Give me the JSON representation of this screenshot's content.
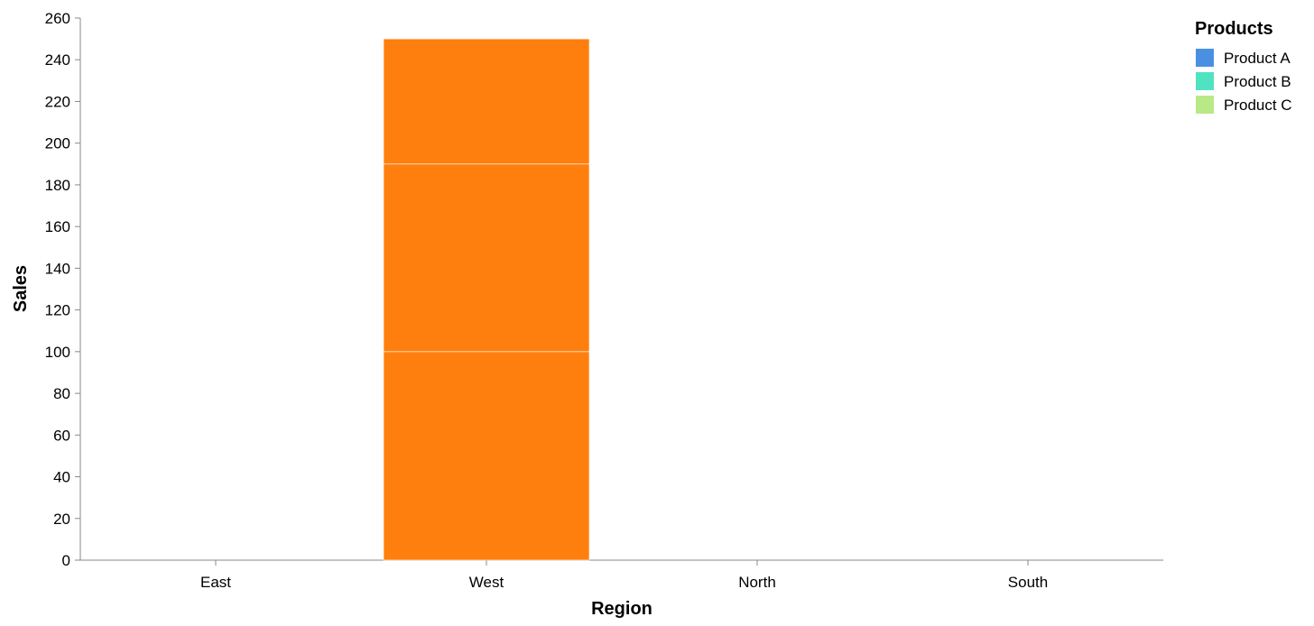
{
  "chart_data": {
    "type": "bar",
    "stacked": true,
    "categories": [
      "East",
      "West",
      "North",
      "South"
    ],
    "series": [
      {
        "name": "Product A",
        "color": "#4a90e2",
        "values": [
          0,
          100,
          0,
          0
        ]
      },
      {
        "name": "Product B",
        "color": "#50e3c2",
        "values": [
          0,
          90,
          0,
          0
        ]
      },
      {
        "name": "Product C",
        "color": "#b8e986",
        "values": [
          0,
          60,
          0,
          0
        ]
      }
    ],
    "rendered_bar_color": "#ff7f0e",
    "xlabel": "Region",
    "ylabel": "Sales",
    "ylim": [
      0,
      260
    ],
    "yticks": [
      0,
      20,
      40,
      60,
      80,
      100,
      120,
      140,
      160,
      180,
      200,
      220,
      240,
      260
    ],
    "grid": false,
    "legend": {
      "title": "Products",
      "placement": "top-right"
    }
  }
}
